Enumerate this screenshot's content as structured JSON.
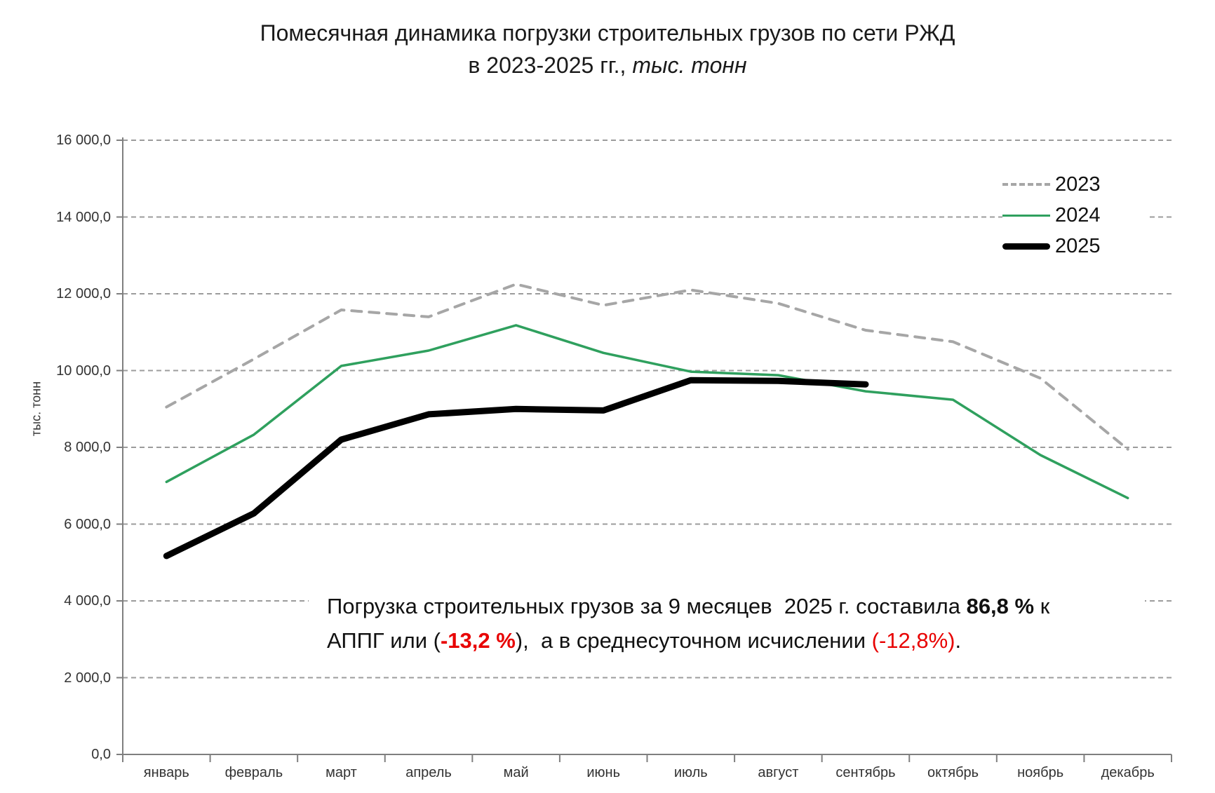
{
  "title": {
    "line1": "Помесячная динамика  погрузки строительных грузов по сети РЖД",
    "line2_prefix": "в 2023-2025 гг., ",
    "line2_italic": "тыс. тонн"
  },
  "y_axis": {
    "title": "тыс. тонн",
    "ticks": [
      {
        "label": "16 000,0",
        "value": 16000
      },
      {
        "label": "14 000,0",
        "value": 14000
      },
      {
        "label": "12 000,0",
        "value": 12000
      },
      {
        "label": "10 000,0",
        "value": 10000
      },
      {
        "label": "8 000,0",
        "value": 8000
      },
      {
        "label": "6 000,0",
        "value": 6000
      },
      {
        "label": "4 000,0",
        "value": 4000
      },
      {
        "label": "2 000,0",
        "value": 2000
      },
      {
        "label": "0,0",
        "value": 0
      }
    ]
  },
  "x_axis": {
    "labels": [
      "январь",
      "февраль",
      "март",
      "апрель",
      "май",
      "июнь",
      "июль",
      "август",
      "сентябрь",
      "октябрь",
      "ноябрь",
      "декабрь"
    ]
  },
  "legend": {
    "items": [
      {
        "label": "2023"
      },
      {
        "label": "2024"
      },
      {
        "label": "2025"
      }
    ]
  },
  "annotation": {
    "line1_part1": "Погрузка строительных грузов за 9 месяцев  2025 г. составила ",
    "line1_bold": "86,8 %",
    "line1_part2": " к",
    "line2_part1": "АППГ или (",
    "line2_red_bold": "-13,2 %",
    "line2_part2": "),  а в среднесуточном исчислении ",
    "line2_red": "(-12,8%)",
    "line2_part3": "."
  },
  "colors": {
    "gridline": "#9C9C9C",
    "axis": "#7F7F7F",
    "series_2023": "#A6A6A6",
    "series_2024": "#2FA05E",
    "series_2025": "#000000",
    "annotation_red": "#e80000"
  },
  "chart_data": {
    "type": "line",
    "title": "Помесячная динамика погрузки строительных грузов по сети РЖД в 2023-2025 гг., тыс. тонн",
    "xlabel": "",
    "ylabel": "тыс. тонн",
    "ylim": [
      0,
      16000
    ],
    "ytick_step": 2000,
    "grid": true,
    "legend_position": "upper right",
    "categories": [
      "январь",
      "февраль",
      "март",
      "апрель",
      "май",
      "июнь",
      "июль",
      "август",
      "сентябрь",
      "октябрь",
      "ноябрь",
      "декабрь"
    ],
    "series": [
      {
        "name": "2023",
        "color": "#A6A6A6",
        "style": "dashed",
        "width": 4,
        "values": [
          9050,
          10300,
          11580,
          11400,
          12250,
          11700,
          12100,
          11750,
          11050,
          10750,
          9800,
          7950
        ]
      },
      {
        "name": "2024",
        "color": "#2FA05E",
        "style": "solid",
        "width": 3.5,
        "values": [
          7100,
          8330,
          10120,
          10520,
          11180,
          10460,
          9970,
          9880,
          9460,
          9240,
          7800,
          6680
        ]
      },
      {
        "name": "2025",
        "color": "#000000",
        "style": "solid",
        "width": 9,
        "values": [
          5170,
          6280,
          8200,
          8860,
          9000,
          8960,
          9750,
          9730,
          9640
        ]
      }
    ]
  }
}
